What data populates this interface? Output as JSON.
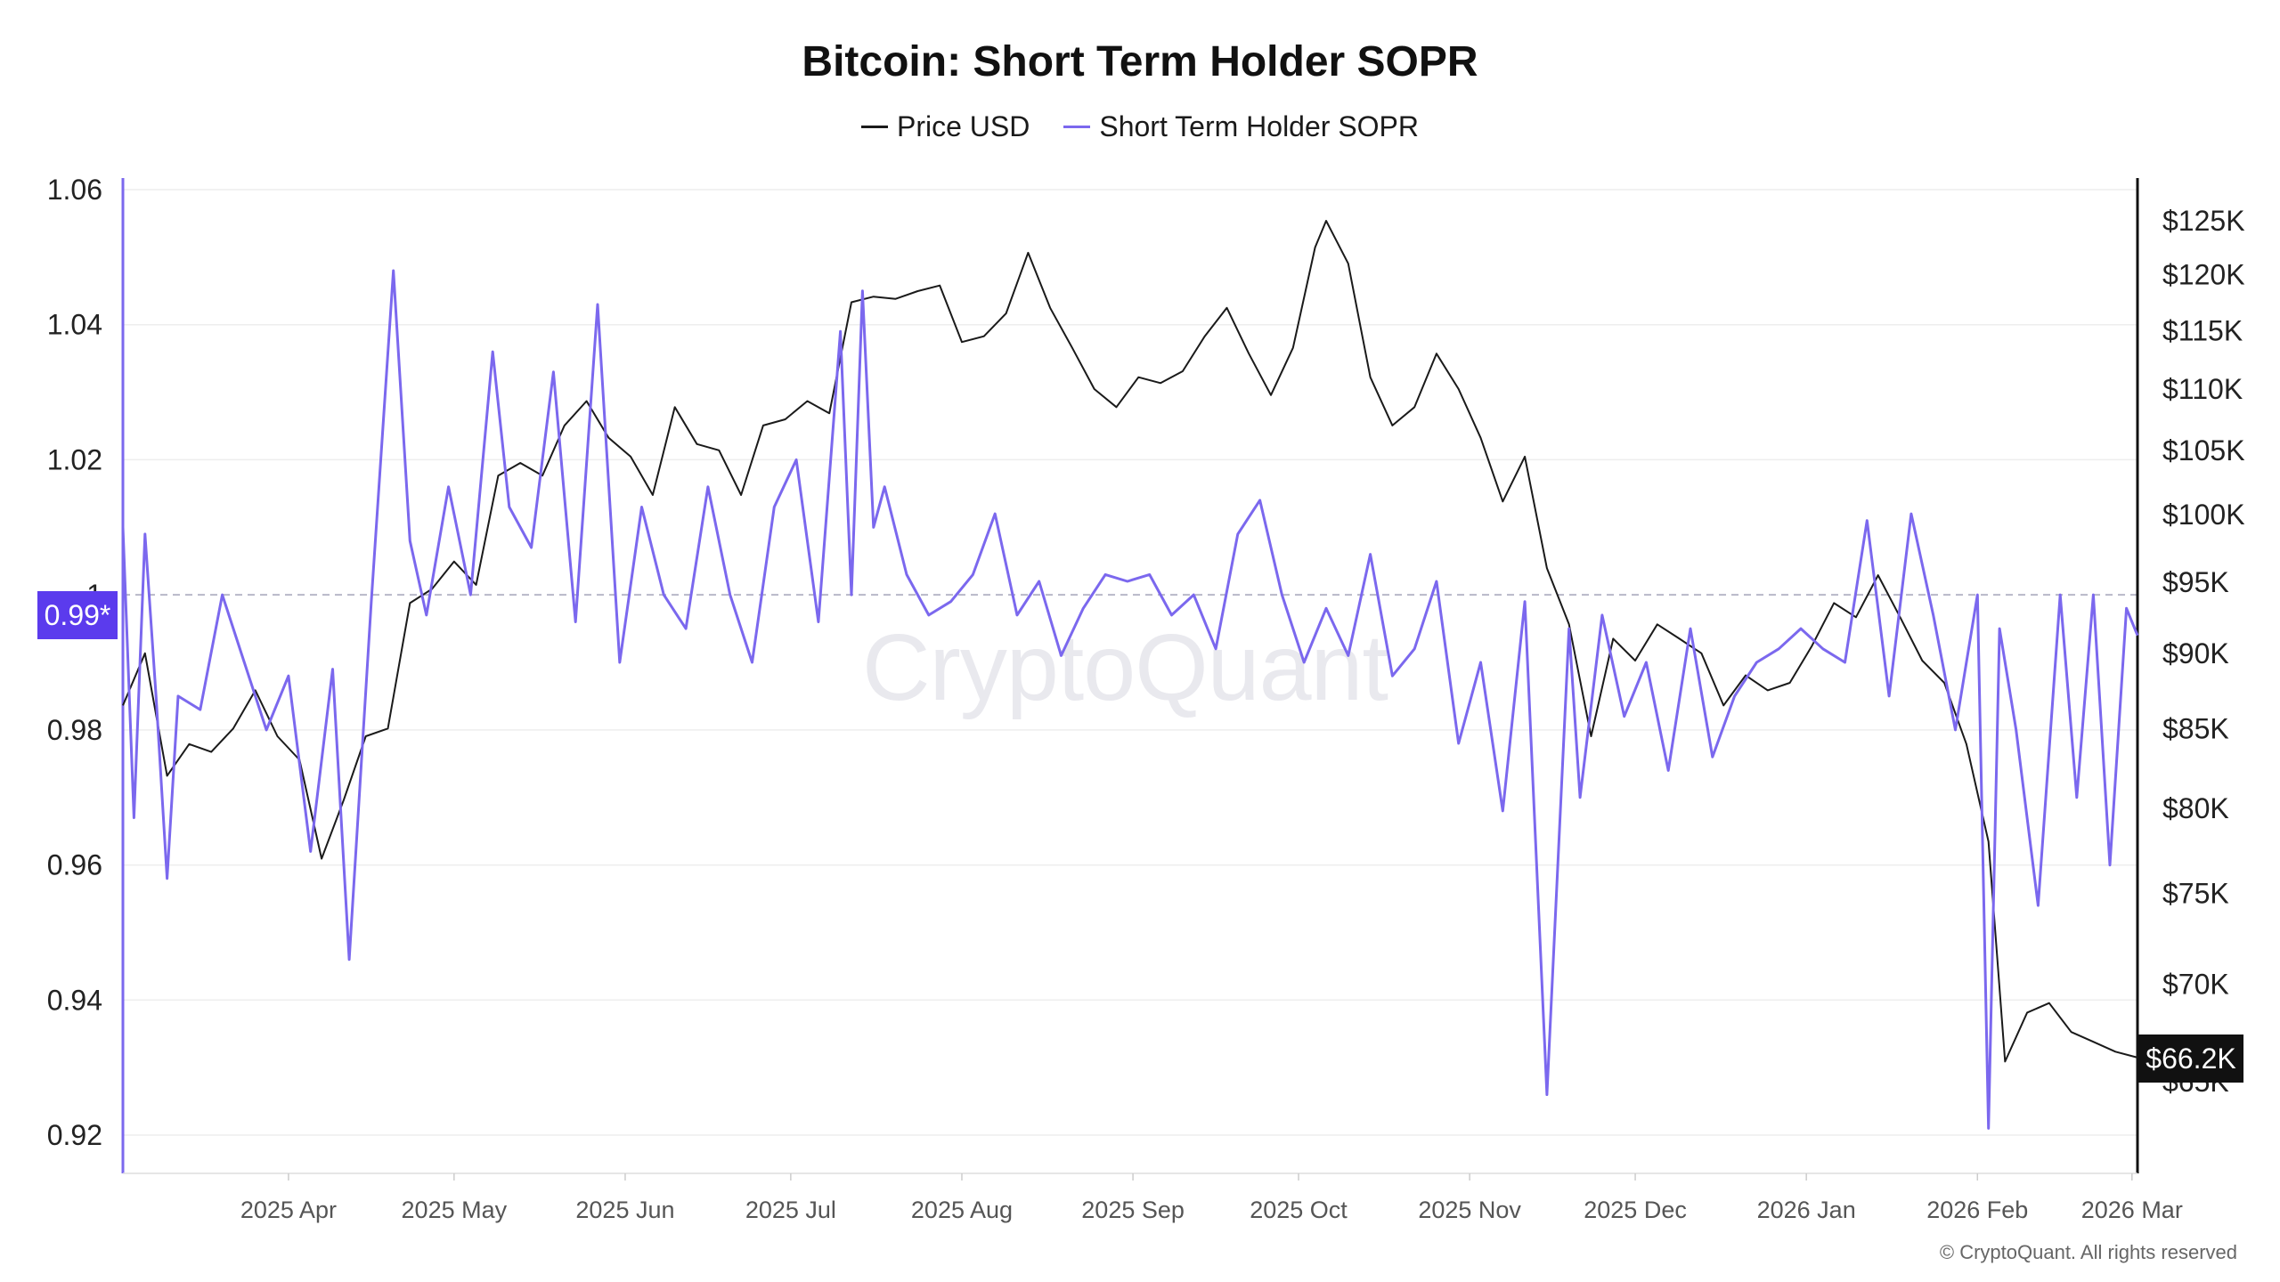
{
  "chart_data": {
    "type": "line",
    "title": "Bitcoin: Short Term Holder SOPR",
    "legend": [
      {
        "name": "Price USD",
        "color": "#1a1a1a"
      },
      {
        "name": "Short Term Holder SOPR",
        "color": "#7b68ee"
      }
    ],
    "x_ticks": [
      "2025 Apr",
      "2025 May",
      "2025 Jun",
      "2025 Jul",
      "2025 Aug",
      "2025 Sep",
      "2025 Oct",
      "2025 Nov",
      "2025 Dec",
      "2026 Jan",
      "2026 Feb",
      "2026 Mar"
    ],
    "x_range": [
      "2025-03-02",
      "2026-03-02"
    ],
    "y_left": {
      "ticks": [
        "1.06",
        "1.04",
        "1.02",
        "1",
        "0.98",
        "0.96",
        "0.94",
        "0.92"
      ],
      "range": [
        0.915,
        1.06
      ]
    },
    "y_right": {
      "ticks": [
        "$125K",
        "$120K",
        "$115K",
        "$110K",
        "$105K",
        "$100K",
        "$95K",
        "$90K",
        "$85K",
        "$80K",
        "$75K",
        "$70K",
        "$65K"
      ],
      "scale": "log"
    },
    "reference_line": {
      "value": 1,
      "style": "dashed"
    },
    "current_sopr_label": "0.99*",
    "current_price_label": "$66.2K",
    "series": [
      {
        "name": "Price USD",
        "axis": "right",
        "x": [
          "2025-03-02",
          "2025-03-06",
          "2025-03-10",
          "2025-03-14",
          "2025-03-18",
          "2025-03-22",
          "2025-03-26",
          "2025-03-30",
          "2025-04-03",
          "2025-04-07",
          "2025-04-11",
          "2025-04-15",
          "2025-04-19",
          "2025-04-23",
          "2025-04-27",
          "2025-05-01",
          "2025-05-05",
          "2025-05-09",
          "2025-05-13",
          "2025-05-17",
          "2025-05-21",
          "2025-05-25",
          "2025-05-29",
          "2025-06-02",
          "2025-06-06",
          "2025-06-10",
          "2025-06-14",
          "2025-06-18",
          "2025-06-22",
          "2025-06-26",
          "2025-06-30",
          "2025-07-04",
          "2025-07-08",
          "2025-07-12",
          "2025-07-16",
          "2025-07-20",
          "2025-07-24",
          "2025-07-28",
          "2025-08-01",
          "2025-08-05",
          "2025-08-09",
          "2025-08-13",
          "2025-08-17",
          "2025-08-21",
          "2025-08-25",
          "2025-08-29",
          "2025-09-02",
          "2025-09-06",
          "2025-09-10",
          "2025-09-14",
          "2025-09-18",
          "2025-09-22",
          "2025-09-26",
          "2025-09-30",
          "2025-10-04",
          "2025-10-06",
          "2025-10-10",
          "2025-10-14",
          "2025-10-18",
          "2025-10-22",
          "2025-10-26",
          "2025-10-30",
          "2025-11-03",
          "2025-11-07",
          "2025-11-11",
          "2025-11-15",
          "2025-11-19",
          "2025-11-23",
          "2025-11-27",
          "2025-12-01",
          "2025-12-05",
          "2025-12-09",
          "2025-12-13",
          "2025-12-17",
          "2025-12-21",
          "2025-12-25",
          "2025-12-29",
          "2026-01-02",
          "2026-01-06",
          "2026-01-10",
          "2026-01-14",
          "2026-01-18",
          "2026-01-22",
          "2026-01-26",
          "2026-01-30",
          "2026-02-03",
          "2026-02-06",
          "2026-02-10",
          "2026-02-14",
          "2026-02-18",
          "2026-02-22",
          "2026-02-26",
          "2026-03-02"
        ],
        "values": [
          86500,
          90000,
          82000,
          84000,
          83500,
          85000,
          87500,
          84500,
          83000,
          77000,
          80500,
          84500,
          85000,
          93500,
          94500,
          96500,
          94800,
          103000,
          104000,
          103000,
          107000,
          109000,
          106000,
          104500,
          101500,
          108500,
          105500,
          105000,
          101500,
          107000,
          107500,
          109000,
          108000,
          117500,
          118000,
          117800,
          118500,
          119000,
          114000,
          114500,
          116500,
          122000,
          117000,
          113500,
          110000,
          108500,
          111000,
          110500,
          111500,
          114500,
          117000,
          113000,
          109500,
          113500,
          122500,
          125000,
          121000,
          111000,
          107000,
          108500,
          113000,
          110000,
          106000,
          101000,
          104500,
          96000,
          92000,
          84500,
          91000,
          89500,
          92000,
          91000,
          90000,
          86500,
          88500,
          87500,
          88000,
          90500,
          93500,
          92500,
          95500,
          92500,
          89500,
          88000,
          84000,
          78000,
          66000,
          68500,
          69000,
          67500,
          67000,
          66500,
          66200
        ]
      },
      {
        "name": "Short Term Holder SOPR",
        "axis": "left",
        "x": [
          "2025-03-02",
          "2025-03-04",
          "2025-03-06",
          "2025-03-08",
          "2025-03-10",
          "2025-03-12",
          "2025-03-16",
          "2025-03-20",
          "2025-03-24",
          "2025-03-28",
          "2025-04-01",
          "2025-04-05",
          "2025-04-09",
          "2025-04-12",
          "2025-04-16",
          "2025-04-20",
          "2025-04-23",
          "2025-04-26",
          "2025-04-30",
          "2025-05-04",
          "2025-05-08",
          "2025-05-11",
          "2025-05-15",
          "2025-05-19",
          "2025-05-23",
          "2025-05-27",
          "2025-05-31",
          "2025-06-04",
          "2025-06-08",
          "2025-06-12",
          "2025-06-16",
          "2025-06-20",
          "2025-06-24",
          "2025-06-28",
          "2025-07-02",
          "2025-07-06",
          "2025-07-10",
          "2025-07-12",
          "2025-07-14",
          "2025-07-16",
          "2025-07-18",
          "2025-07-22",
          "2025-07-26",
          "2025-07-30",
          "2025-08-03",
          "2025-08-07",
          "2025-08-11",
          "2025-08-15",
          "2025-08-19",
          "2025-08-23",
          "2025-08-27",
          "2025-08-31",
          "2025-09-04",
          "2025-09-08",
          "2025-09-12",
          "2025-09-16",
          "2025-09-20",
          "2025-09-24",
          "2025-09-28",
          "2025-10-02",
          "2025-10-06",
          "2025-10-10",
          "2025-10-14",
          "2025-10-18",
          "2025-10-22",
          "2025-10-26",
          "2025-10-30",
          "2025-11-03",
          "2025-11-07",
          "2025-11-11",
          "2025-11-15",
          "2025-11-19",
          "2025-11-21",
          "2025-11-25",
          "2025-11-29",
          "2025-12-03",
          "2025-12-07",
          "2025-12-11",
          "2025-12-15",
          "2025-12-19",
          "2025-12-23",
          "2025-12-27",
          "2025-12-31",
          "2026-01-04",
          "2026-01-08",
          "2026-01-12",
          "2026-01-16",
          "2026-01-20",
          "2026-01-24",
          "2026-01-28",
          "2026-02-01",
          "2026-02-03",
          "2026-02-05",
          "2026-02-08",
          "2026-02-12",
          "2026-02-16",
          "2026-02-19",
          "2026-02-22",
          "2026-02-25",
          "2026-02-28",
          "2026-03-02"
        ],
        "values": [
          1.01,
          0.967,
          1.009,
          0.985,
          0.958,
          0.985,
          0.983,
          1.0,
          0.99,
          0.98,
          0.988,
          0.962,
          0.989,
          0.946,
          0.999,
          1.048,
          1.008,
          0.997,
          1.016,
          1.0,
          1.036,
          1.013,
          1.007,
          1.033,
          0.996,
          1.043,
          0.99,
          1.013,
          1.0,
          0.995,
          1.016,
          1.0,
          0.99,
          1.013,
          1.02,
          0.996,
          1.039,
          1.0,
          1.045,
          1.01,
          1.016,
          1.003,
          0.997,
          0.999,
          1.003,
          1.012,
          0.997,
          1.002,
          0.991,
          0.998,
          1.003,
          1.002,
          1.003,
          0.997,
          1.0,
          0.992,
          1.009,
          1.014,
          1.0,
          0.99,
          0.998,
          0.991,
          1.006,
          0.988,
          0.992,
          1.002,
          0.978,
          0.99,
          0.968,
          0.999,
          0.926,
          0.995,
          0.97,
          0.997,
          0.982,
          0.99,
          0.974,
          0.995,
          0.976,
          0.985,
          0.99,
          0.992,
          0.995,
          0.992,
          0.99,
          1.011,
          0.985,
          1.012,
          0.997,
          0.98,
          1.0,
          0.921,
          0.995,
          0.98,
          0.954,
          1.0,
          0.97,
          1.0,
          0.96,
          0.998,
          0.994
        ]
      }
    ]
  }
}
